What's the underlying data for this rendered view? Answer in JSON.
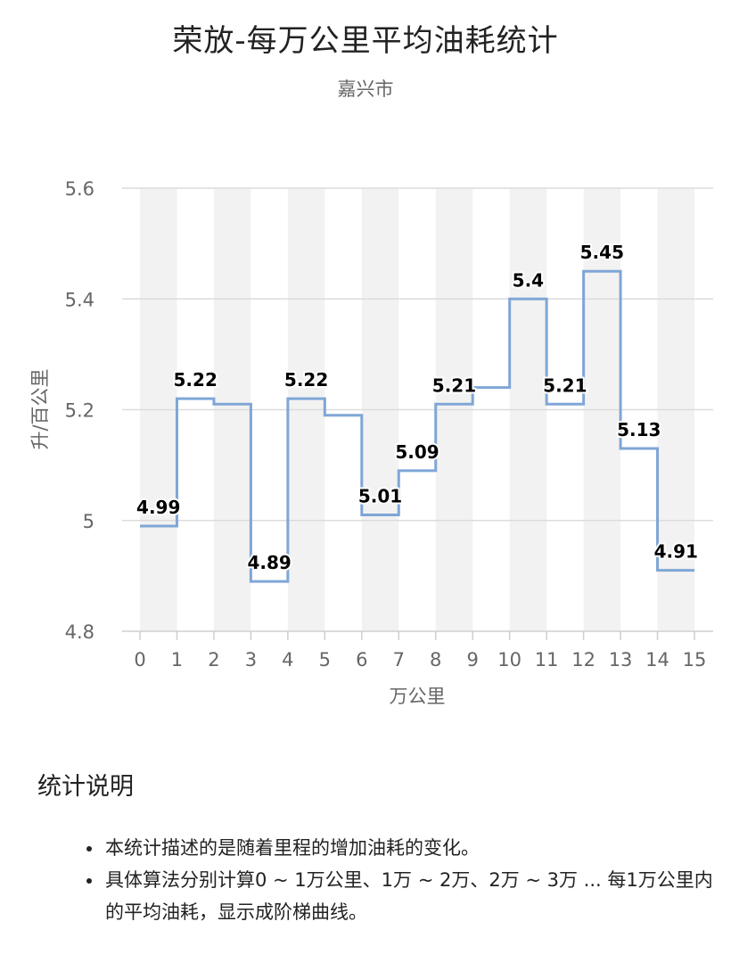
{
  "header": {
    "title": "荣放-每万公里平均油耗统计",
    "subtitle": "嘉兴市"
  },
  "chart_data": {
    "type": "line",
    "step": true,
    "title": "荣放-每万公里平均油耗统计",
    "subtitle": "嘉兴市",
    "xlabel": "万公里",
    "ylabel": "升/百公里",
    "x_ticks": [
      "0",
      "1",
      "2",
      "3",
      "4",
      "5",
      "6",
      "7",
      "8",
      "9",
      "10",
      "11",
      "12",
      "13",
      "14",
      "15"
    ],
    "y_ticks": [
      "4.8",
      "5",
      "5.2",
      "5.4",
      "5.6"
    ],
    "ylim": [
      4.8,
      5.6
    ],
    "xlim": [
      0,
      15
    ],
    "grid": true,
    "alternating_bands": true,
    "line_color": "#7fa6d6",
    "band_color": "#f2f2f2",
    "segments": [
      {
        "from": 0,
        "to": 1,
        "value": 4.99,
        "label": "4.99"
      },
      {
        "from": 1,
        "to": 2,
        "value": 5.22,
        "label": "5.22"
      },
      {
        "from": 2,
        "to": 3,
        "value": 5.21,
        "label": ""
      },
      {
        "from": 3,
        "to": 4,
        "value": 4.89,
        "label": "4.89"
      },
      {
        "from": 4,
        "to": 5,
        "value": 5.22,
        "label": "5.22"
      },
      {
        "from": 5,
        "to": 6,
        "value": 5.19,
        "label": ""
      },
      {
        "from": 6,
        "to": 7,
        "value": 5.01,
        "label": "5.01"
      },
      {
        "from": 7,
        "to": 8,
        "value": 5.09,
        "label": "5.09"
      },
      {
        "from": 8,
        "to": 9,
        "value": 5.21,
        "label": "5.21"
      },
      {
        "from": 9,
        "to": 10,
        "value": 5.24,
        "label": ""
      },
      {
        "from": 10,
        "to": 11,
        "value": 5.4,
        "label": "5.4"
      },
      {
        "from": 11,
        "to": 12,
        "value": 5.21,
        "label": "5.21"
      },
      {
        "from": 12,
        "to": 13,
        "value": 5.45,
        "label": "5.45"
      },
      {
        "from": 13,
        "to": 14,
        "value": 5.13,
        "label": "5.13"
      },
      {
        "from": 14,
        "to": 15,
        "value": 4.91,
        "label": "4.91"
      }
    ]
  },
  "notes": {
    "heading": "统计说明",
    "items": [
      "本统计描述的是随着里程的增加油耗的变化。",
      "具体算法分别计算0 ~ 1万公里、1万 ~ 2万、2万 ~ 3万 ... 每1万公里内的平均油耗，显示成阶梯曲线。"
    ]
  }
}
